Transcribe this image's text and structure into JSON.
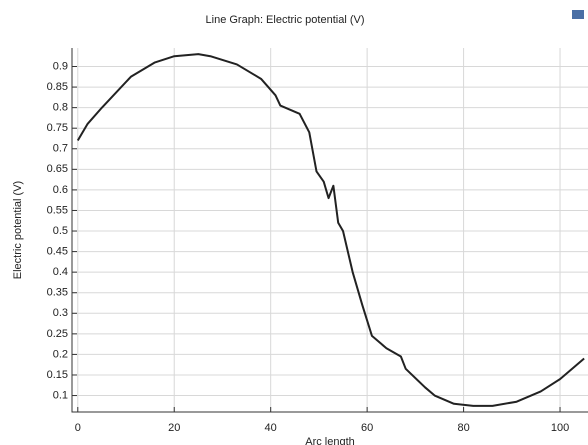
{
  "chart_data": {
    "type": "line",
    "title": "Line Graph: Electric potential (V)",
    "x_label": "Arc length",
    "y_label": "Electric potential (V)",
    "xlim": [
      -1.2,
      105.8
    ],
    "ylim": [
      0.06,
      0.945
    ],
    "xticks": [
      0,
      20,
      40,
      60,
      80,
      100
    ],
    "yticks": [
      0.1,
      0.15,
      0.2,
      0.25,
      0.3,
      0.35,
      0.4,
      0.45,
      0.5,
      0.55,
      0.6,
      0.65,
      0.7,
      0.75,
      0.8,
      0.85,
      0.9
    ],
    "grid": true,
    "series": [
      {
        "name": "Electric potential",
        "color": "#222222",
        "x": [
          0,
          2,
          5,
          11,
          16,
          20,
          25,
          27.5,
          33,
          38,
          41,
          42,
          46,
          48,
          49.5,
          51,
          52,
          53,
          54,
          55,
          57,
          59,
          61,
          64,
          67,
          68,
          72,
          74,
          78,
          82,
          86,
          91,
          96,
          100,
          103,
          105
        ],
        "values": [
          0.72,
          0.76,
          0.8,
          0.875,
          0.91,
          0.925,
          0.93,
          0.925,
          0.905,
          0.87,
          0.83,
          0.805,
          0.785,
          0.74,
          0.645,
          0.62,
          0.58,
          0.61,
          0.52,
          0.5,
          0.4,
          0.32,
          0.245,
          0.215,
          0.195,
          0.165,
          0.12,
          0.1,
          0.08,
          0.075,
          0.075,
          0.085,
          0.11,
          0.14,
          0.17,
          0.19
        ]
      }
    ]
  }
}
